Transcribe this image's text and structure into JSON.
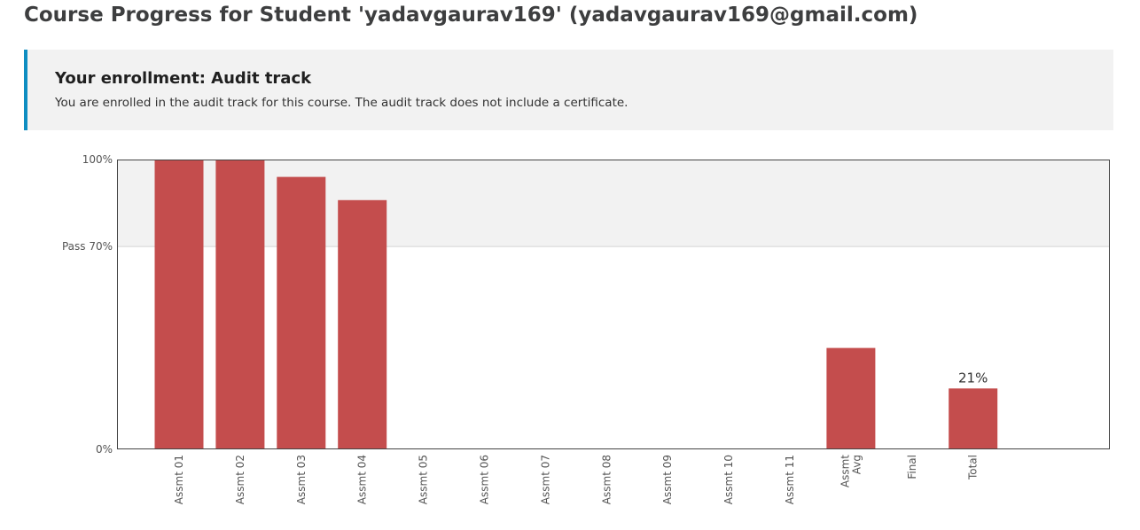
{
  "header": {
    "title": "Course Progress for Student 'yadavgaurav169' (yadavgaurav169@gmail.com)"
  },
  "enrollment": {
    "title": "Your enrollment: Audit track",
    "message": "You are enrolled in the audit track for this course. The audit track does not include a certificate."
  },
  "colors": {
    "bar": "#c44d4d",
    "banner_accent": "#0e8dc1",
    "banner_background": "#f2f2f2",
    "pass_band": "#f2f2f2"
  },
  "chart_data": {
    "type": "bar",
    "categories": [
      [
        "Assmt 01"
      ],
      [
        "Assmt 02"
      ],
      [
        "Assmt 03"
      ],
      [
        "Assmt 04"
      ],
      [
        "Assmt 05"
      ],
      [
        "Assmt 06"
      ],
      [
        "Assmt 07"
      ],
      [
        "Assmt 08"
      ],
      [
        "Assmt 09"
      ],
      [
        "Assmt 10"
      ],
      [
        "Assmt 11"
      ],
      [
        "Assmt",
        "Avg"
      ],
      [
        "Final"
      ],
      [
        "Total"
      ]
    ],
    "values": [
      100,
      100,
      94,
      86,
      0,
      0,
      0,
      0,
      0,
      0,
      0,
      35,
      0,
      21
    ],
    "data_labels": [
      "",
      "",
      "",
      "",
      "",
      "",
      "",
      "",
      "",
      "",
      "",
      "",
      "",
      "21%"
    ],
    "ylim": [
      0,
      100
    ],
    "y_ticks": [
      {
        "value": 100,
        "label": "100%"
      },
      {
        "value": 70,
        "label": "Pass 70%"
      },
      {
        "value": 0,
        "label": "0%"
      }
    ],
    "pass_threshold": 70
  }
}
